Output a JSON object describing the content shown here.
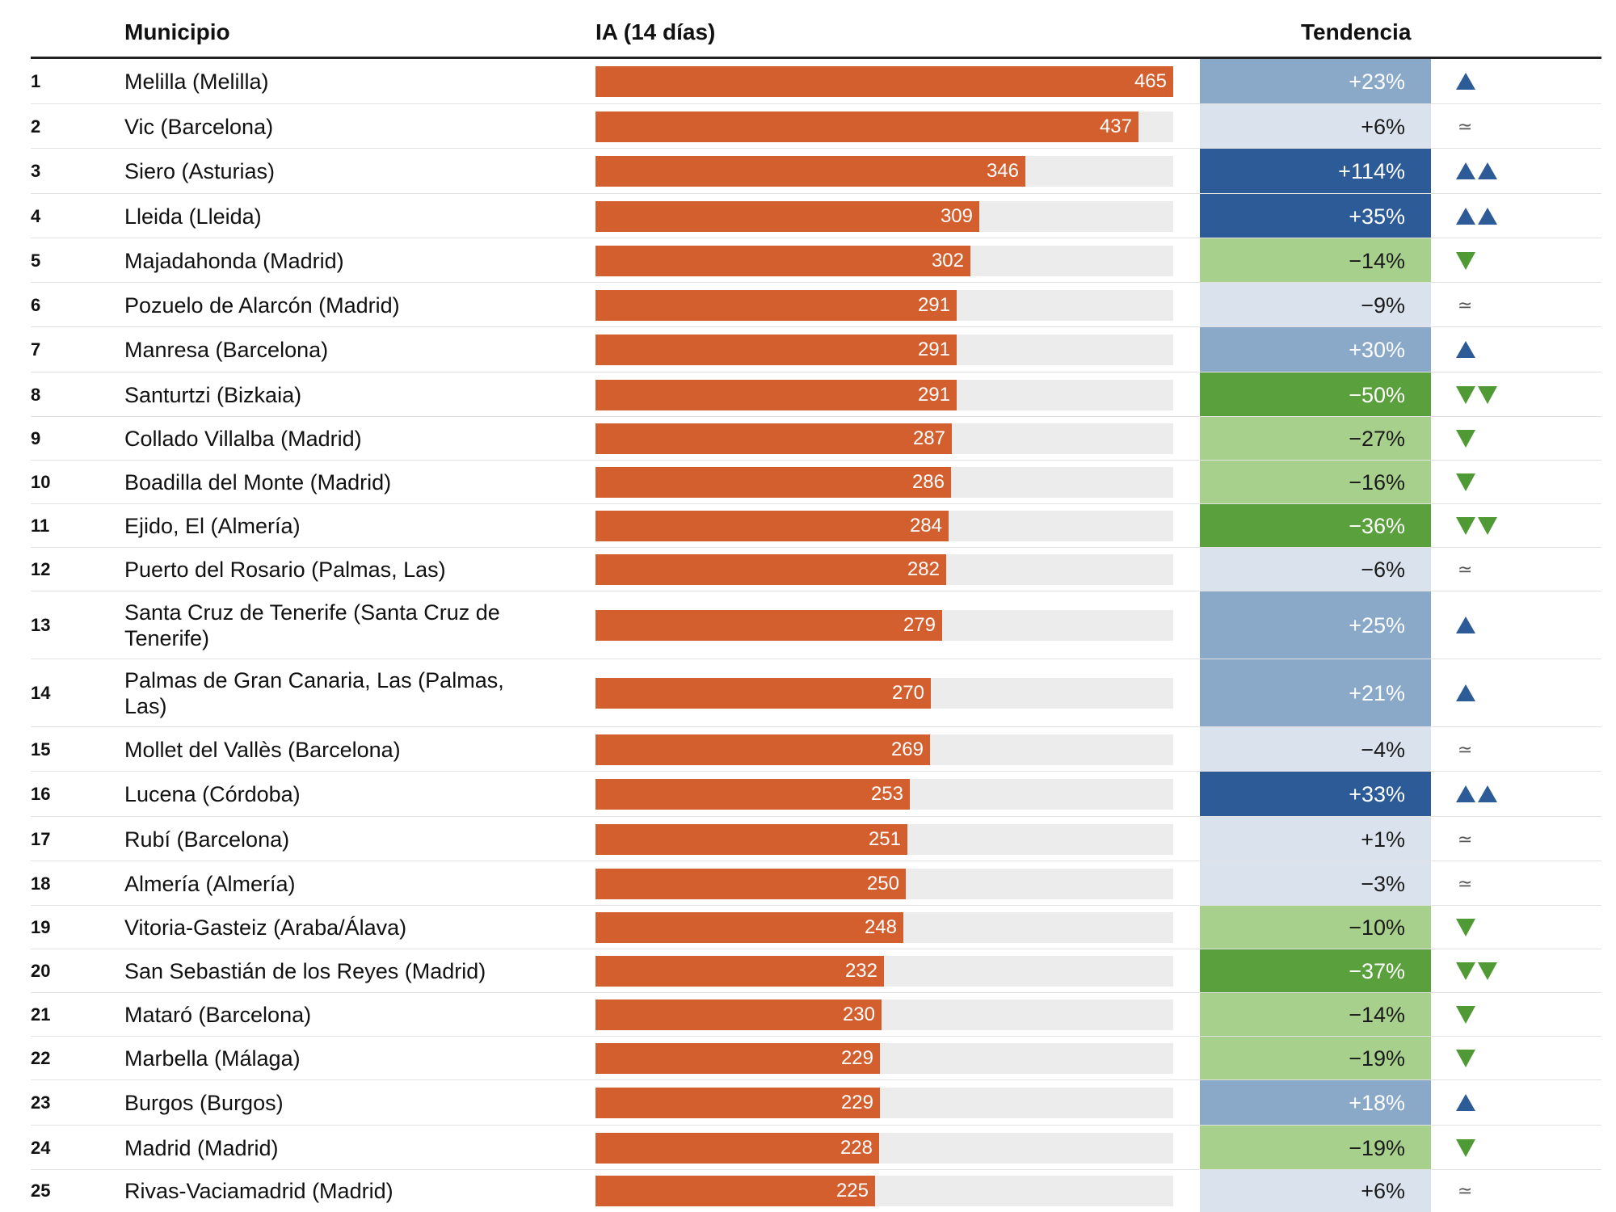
{
  "header": {
    "municipio": "Municipio",
    "ia": "IA (14 días)",
    "tendencia": "Tendencia"
  },
  "colors": {
    "bar": "#d35f2e",
    "track": "#ececec",
    "up1": "#8aa9c9",
    "up2": "#2c5b97",
    "stable": "#dae3ed",
    "down1": "#a8d08d",
    "down2": "#5aa03c",
    "arrow_up": "#2c5b97",
    "arrow_down": "#4f9a34",
    "approx": "#555555"
  },
  "icons": {
    "up": "triangle-up-icon",
    "down": "triangle-down-icon",
    "stable": "approx-icon"
  },
  "approx_symbol": "≃",
  "chart_data": {
    "type": "table",
    "columns": [
      "",
      "Municipio",
      "IA (14 días)",
      "Tendencia"
    ],
    "xlim": [
      0,
      465
    ],
    "rows": [
      {
        "rank": "1",
        "name": "Melilla (Melilla)",
        "ia": 465,
        "ia_label": "465",
        "pct": "+23%",
        "trend": "up1"
      },
      {
        "rank": "2",
        "name": "Vic (Barcelona)",
        "ia": 437,
        "ia_label": "437",
        "pct": "+6%",
        "trend": "stable"
      },
      {
        "rank": "3",
        "name": "Siero (Asturias)",
        "ia": 346,
        "ia_label": "346",
        "pct": "+114%",
        "trend": "up2"
      },
      {
        "rank": "4",
        "name": "Lleida (Lleida)",
        "ia": 309,
        "ia_label": "309",
        "pct": "+35%",
        "trend": "up2"
      },
      {
        "rank": "5",
        "name": "Majadahonda (Madrid)",
        "ia": 302,
        "ia_label": "302",
        "pct": "−14%",
        "trend": "down1"
      },
      {
        "rank": "6",
        "name": "Pozuelo de Alarcón (Madrid)",
        "ia": 291,
        "ia_label": "291",
        "pct": "−9%",
        "trend": "stable"
      },
      {
        "rank": "7",
        "name": "Manresa (Barcelona)",
        "ia": 291,
        "ia_label": "291",
        "pct": "+30%",
        "trend": "up1"
      },
      {
        "rank": "8",
        "name": "Santurtzi (Bizkaia)",
        "ia": 291,
        "ia_label": "291",
        "pct": "−50%",
        "trend": "down2"
      },
      {
        "rank": "9",
        "name": "Collado Villalba (Madrid)",
        "ia": 287,
        "ia_label": "287",
        "pct": "−27%",
        "trend": "down1"
      },
      {
        "rank": "10",
        "name": "Boadilla del Monte (Madrid)",
        "ia": 286,
        "ia_label": "286",
        "pct": "−16%",
        "trend": "down1"
      },
      {
        "rank": "11",
        "name": "Ejido, El (Almería)",
        "ia": 284,
        "ia_label": "284",
        "pct": "−36%",
        "trend": "down2"
      },
      {
        "rank": "12",
        "name": "Puerto del Rosario (Palmas, Las)",
        "ia": 282,
        "ia_label": "282",
        "pct": "−6%",
        "trend": "stable"
      },
      {
        "rank": "13",
        "name": "Santa Cruz de Tenerife (Santa Cruz de Tenerife)",
        "ia": 279,
        "ia_label": "279",
        "pct": "+25%",
        "trend": "up1"
      },
      {
        "rank": "14",
        "name": "Palmas de Gran Canaria, Las (Palmas, Las)",
        "ia": 270,
        "ia_label": "270",
        "pct": "+21%",
        "trend": "up1"
      },
      {
        "rank": "15",
        "name": "Mollet del Vallès (Barcelona)",
        "ia": 269,
        "ia_label": "269",
        "pct": "−4%",
        "trend": "stable"
      },
      {
        "rank": "16",
        "name": "Lucena (Córdoba)",
        "ia": 253,
        "ia_label": "253",
        "pct": "+33%",
        "trend": "up2"
      },
      {
        "rank": "17",
        "name": "Rubí (Barcelona)",
        "ia": 251,
        "ia_label": "251",
        "pct": "+1%",
        "trend": "stable"
      },
      {
        "rank": "18",
        "name": "Almería (Almería)",
        "ia": 250,
        "ia_label": "250",
        "pct": "−3%",
        "trend": "stable"
      },
      {
        "rank": "19",
        "name": "Vitoria-Gasteiz (Araba/Álava)",
        "ia": 248,
        "ia_label": "248",
        "pct": "−10%",
        "trend": "down1"
      },
      {
        "rank": "20",
        "name": "San Sebastián de los Reyes (Madrid)",
        "ia": 232,
        "ia_label": "232",
        "pct": "−37%",
        "trend": "down2"
      },
      {
        "rank": "21",
        "name": "Mataró (Barcelona)",
        "ia": 230,
        "ia_label": "230",
        "pct": "−14%",
        "trend": "down1"
      },
      {
        "rank": "22",
        "name": "Marbella (Málaga)",
        "ia": 229,
        "ia_label": "229",
        "pct": "−19%",
        "trend": "down1"
      },
      {
        "rank": "23",
        "name": "Burgos (Burgos)",
        "ia": 229,
        "ia_label": "229",
        "pct": "+18%",
        "trend": "up1"
      },
      {
        "rank": "24",
        "name": "Madrid (Madrid)",
        "ia": 228,
        "ia_label": "228",
        "pct": "−19%",
        "trend": "down1"
      },
      {
        "rank": "25",
        "name": "Rivas-Vaciamadrid (Madrid)",
        "ia": 225,
        "ia_label": "225",
        "pct": "+6%",
        "trend": "stable"
      }
    ]
  }
}
